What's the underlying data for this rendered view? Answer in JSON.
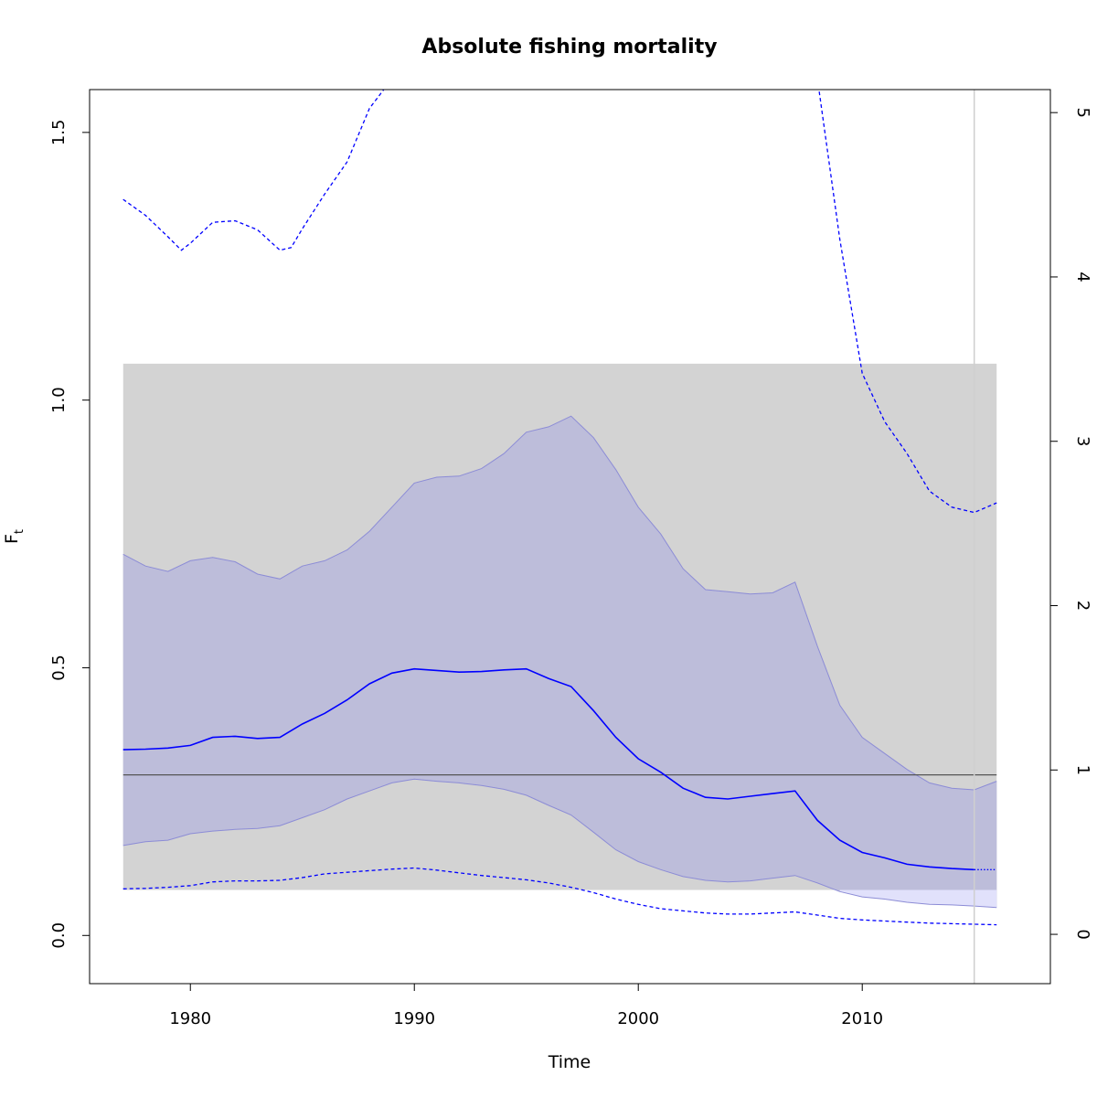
{
  "chart_data": {
    "type": "line",
    "title": "Absolute fishing mortality",
    "xlabel": "Time",
    "ylabel": "F",
    "ylabel_subscript": "t",
    "xlim": [
      1975.5,
      2018.4
    ],
    "ylim": [
      -0.09,
      1.58
    ],
    "y2lim": [
      -0.3,
      5.14
    ],
    "x_ticks": [
      1980,
      1990,
      2000,
      2010
    ],
    "x_tick_labels": [
      "1980",
      "1990",
      "2000",
      "2010"
    ],
    "y_ticks": [
      0.0,
      0.5,
      1.0,
      1.5
    ],
    "y_tick_labels": [
      "0.0",
      "0.5",
      "1.0",
      "1.5"
    ],
    "y2_ticks": [
      0,
      1,
      2,
      3,
      4,
      5
    ],
    "y2_tick_labels": [
      "0",
      "1",
      "2",
      "3",
      "4",
      "5"
    ],
    "colors": {
      "estimate": "#0000ff",
      "ci_fill": "#bdbdda",
      "ci_border": "#8c8cd6",
      "prediction_fill": "#e1e1fb",
      "reference_band": "#d3d3d3",
      "reference_line": "#555555",
      "vline": "#cfcfcf"
    },
    "reference_band": {
      "x": [
        1977,
        2016
      ],
      "y": [
        0.085,
        1.068
      ]
    },
    "reference_line": {
      "x": [
        1977,
        2016
      ],
      "y": 0.3
    },
    "vline": {
      "x": 2015
    },
    "estimate": {
      "x": [
        1977,
        1978,
        1979,
        1980,
        1981,
        1982,
        1983,
        1984,
        1985,
        1986,
        1987,
        1988,
        1989,
        1990,
        1991,
        1992,
        1993,
        1994,
        1995,
        1996,
        1997,
        1998,
        1999,
        2000,
        2001,
        2002,
        2003,
        2004,
        2005,
        2006,
        2007,
        2008,
        2009,
        2010,
        2011,
        2012,
        2013,
        2014,
        2015
      ],
      "y": [
        0.347,
        0.348,
        0.35,
        0.355,
        0.37,
        0.372,
        0.368,
        0.37,
        0.395,
        0.415,
        0.44,
        0.47,
        0.49,
        0.498,
        0.495,
        0.492,
        0.493,
        0.496,
        0.498,
        0.48,
        0.465,
        0.42,
        0.37,
        0.33,
        0.305,
        0.275,
        0.258,
        0.255,
        0.26,
        0.265,
        0.27,
        0.215,
        0.178,
        0.155,
        0.145,
        0.133,
        0.128,
        0.125,
        0.123
      ]
    },
    "estimate_forecast": {
      "x": [
        2015,
        2016
      ],
      "y": [
        0.123,
        0.123
      ]
    },
    "ci_upper": {
      "x": [
        1977,
        1978,
        1979,
        1980,
        1981,
        1982,
        1983,
        1984,
        1985,
        1986,
        1987,
        1988,
        1989,
        1990,
        1991,
        1992,
        1993,
        1994,
        1995,
        1996,
        1997,
        1998,
        1999,
        2000,
        2001,
        2002,
        2003,
        2004,
        2005,
        2006,
        2007,
        2008,
        2009,
        2010,
        2011,
        2012,
        2013,
        2014,
        2015,
        2016
      ],
      "y": [
        0.712,
        0.69,
        0.68,
        0.7,
        0.706,
        0.698,
        0.675,
        0.666,
        0.69,
        0.7,
        0.72,
        0.755,
        0.8,
        0.845,
        0.856,
        0.858,
        0.872,
        0.9,
        0.94,
        0.95,
        0.97,
        0.93,
        0.87,
        0.8,
        0.75,
        0.685,
        0.646,
        0.642,
        0.638,
        0.64,
        0.66,
        0.54,
        0.43,
        0.37,
        0.34,
        0.31,
        0.285,
        0.275,
        0.272,
        0.288
      ]
    },
    "ci_lower": {
      "x": [
        1977,
        1978,
        1979,
        1980,
        1981,
        1982,
        1983,
        1984,
        1985,
        1986,
        1987,
        1988,
        1989,
        1990,
        1991,
        1992,
        1993,
        1994,
        1995,
        1996,
        1997,
        1998,
        1999,
        2000,
        2001,
        2002,
        2003,
        2004,
        2005,
        2006,
        2007,
        2008,
        2009,
        2010,
        2011,
        2012,
        2013,
        2014,
        2015,
        2016
      ],
      "y": [
        0.168,
        0.175,
        0.178,
        0.19,
        0.195,
        0.198,
        0.2,
        0.205,
        0.22,
        0.235,
        0.255,
        0.27,
        0.285,
        0.292,
        0.288,
        0.285,
        0.28,
        0.273,
        0.262,
        0.243,
        0.225,
        0.193,
        0.16,
        0.138,
        0.123,
        0.11,
        0.103,
        0.1,
        0.102,
        0.107,
        0.112,
        0.098,
        0.082,
        0.072,
        0.068,
        0.062,
        0.058,
        0.057,
        0.055,
        0.052
      ]
    },
    "bound_upper": {
      "x": [
        1977,
        1978,
        1979,
        1979.6,
        1980,
        1981,
        1982,
        1983,
        1984,
        1984.5,
        1985,
        1986,
        1987,
        1988,
        1989,
        2008,
        2009,
        2010,
        2011,
        2012,
        2013,
        2014,
        2015,
        2016
      ],
      "y": [
        1.375,
        1.345,
        1.305,
        1.28,
        1.293,
        1.332,
        1.335,
        1.318,
        1.28,
        1.285,
        1.32,
        1.385,
        1.445,
        1.545,
        1.6,
        1.6,
        1.3,
        1.05,
        0.96,
        0.9,
        0.83,
        0.8,
        0.79,
        0.808
      ]
    },
    "bound_lower": {
      "x": [
        1977,
        1978,
        1979,
        1980,
        1981,
        1982,
        1983,
        1984,
        1985,
        1986,
        1987,
        1988,
        1989,
        1990,
        1991,
        1992,
        1993,
        1994,
        1995,
        1996,
        1997,
        1998,
        1999,
        2000,
        2001,
        2002,
        2003,
        2004,
        2005,
        2006,
        2007,
        2008,
        2009,
        2010,
        2011,
        2012,
        2013,
        2014,
        2015,
        2016
      ],
      "y": [
        0.087,
        0.088,
        0.09,
        0.093,
        0.1,
        0.102,
        0.102,
        0.103,
        0.108,
        0.115,
        0.118,
        0.121,
        0.124,
        0.126,
        0.122,
        0.117,
        0.112,
        0.108,
        0.104,
        0.098,
        0.09,
        0.08,
        0.068,
        0.058,
        0.05,
        0.046,
        0.042,
        0.04,
        0.04,
        0.042,
        0.044,
        0.038,
        0.032,
        0.029,
        0.027,
        0.025,
        0.023,
        0.022,
        0.021,
        0.02
      ]
    }
  }
}
